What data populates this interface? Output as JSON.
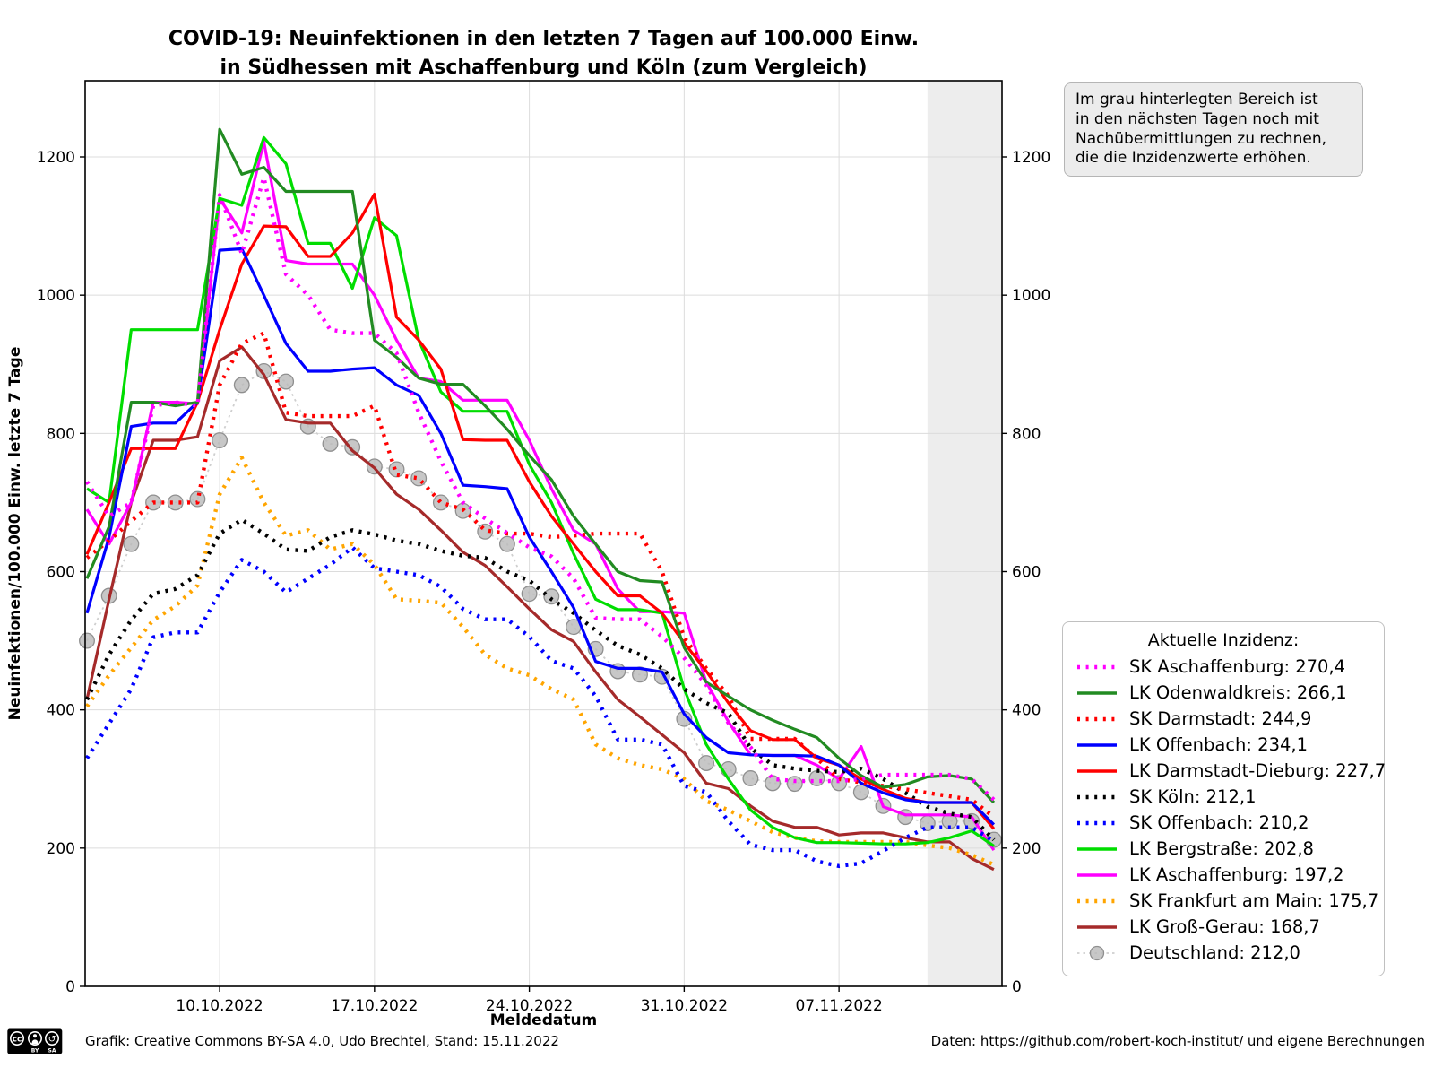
{
  "chart_data": {
    "type": "line",
    "title": "COVID-19: Neuinfektionen in den letzten 7 Tagen auf 100.000 Einw.\nin Südhessen mit Aschaffenburg und Köln (zum Vergleich)",
    "xlabel": "Meldedatum",
    "ylabel": "Neuinfektionen/100.000 Einw. letzte 7 Tage",
    "ylim": [
      0,
      1310
    ],
    "yticks": [
      0,
      200,
      400,
      600,
      800,
      1000,
      1200
    ],
    "grid": true,
    "n_days": 42,
    "x_start_date": "04.10.2022",
    "x_end_date": "14.11.2022",
    "x_tick_labels": [
      "10.10.2022",
      "17.10.2022",
      "24.10.2022",
      "31.10.2022",
      "07.11.2022"
    ],
    "x_tick_indices": [
      6,
      13,
      20,
      27,
      34
    ],
    "shaded_region": {
      "start_index": 38,
      "end_index": 41,
      "color": "#ededed"
    },
    "legend_title": "Aktuelle Inzidenz:",
    "legend_position": "lower right, outside plot",
    "series": [
      {
        "name": "SK Aschaffenburg",
        "value_label": "270,4",
        "color": "#ff00ff",
        "style": "dotted",
        "values": [
          730,
          680,
          700,
          840,
          845,
          840,
          1145,
          1060,
          1170,
          1030,
          1000,
          950,
          945,
          945,
          916,
          830,
          760,
          700,
          677,
          656,
          635,
          622,
          590,
          533,
          531,
          531,
          506,
          475,
          436,
          381,
          346,
          300,
          297,
          297,
          297,
          300,
          306,
          306,
          306,
          306,
          300,
          270
        ]
      },
      {
        "name": "LK Odenwaldkreis",
        "value_label": "266,1",
        "color": "#228b22",
        "style": "solid",
        "values": [
          590,
          665,
          845,
          845,
          840,
          845,
          1240,
          1175,
          1185,
          1150,
          1150,
          1150,
          1150,
          935,
          910,
          880,
          871,
          871,
          840,
          806,
          768,
          733,
          680,
          640,
          600,
          587,
          585,
          490,
          440,
          420,
          400,
          385,
          372,
          360,
          330,
          305,
          288,
          292,
          303,
          305,
          300,
          266
        ]
      },
      {
        "name": "SK Darmstadt",
        "value_label": "244,9",
        "color": "#ff0000",
        "style": "dotted",
        "values": [
          620,
          645,
          673,
          700,
          700,
          700,
          870,
          930,
          945,
          830,
          825,
          825,
          825,
          840,
          740,
          735,
          700,
          690,
          660,
          655,
          655,
          650,
          652,
          655,
          655,
          655,
          600,
          505,
          460,
          420,
          358,
          358,
          358,
          330,
          300,
          295,
          290,
          285,
          280,
          275,
          270,
          245
        ]
      },
      {
        "name": "LK Offenbach",
        "value_label": "234,1",
        "color": "#0000ff",
        "style": "solid",
        "values": [
          540,
          650,
          810,
          815,
          815,
          845,
          1065,
          1067,
          1000,
          930,
          890,
          890,
          893,
          895,
          870,
          855,
          800,
          725,
          723,
          720,
          650,
          600,
          548,
          470,
          460,
          460,
          455,
          394,
          360,
          338,
          335,
          334,
          334,
          333,
          320,
          294,
          280,
          270,
          266,
          266,
          266,
          234
        ]
      },
      {
        "name": "LK Darmstadt-Dieburg",
        "value_label": "227,7",
        "color": "#ff0000",
        "style": "solid",
        "values": [
          625,
          700,
          778,
          778,
          778,
          845,
          950,
          1045,
          1100,
          1099,
          1056,
          1056,
          1090,
          1146,
          968,
          935,
          893,
          791,
          790,
          790,
          730,
          680,
          640,
          600,
          565,
          565,
          540,
          497,
          456,
          410,
          370,
          357,
          357,
          330,
          320,
          300,
          285,
          272,
          266,
          266,
          266,
          228
        ]
      },
      {
        "name": "SK Köln",
        "value_label": "212,1",
        "color": "#000000",
        "style": "dotted",
        "values": [
          415,
          480,
          530,
          568,
          575,
          595,
          655,
          675,
          655,
          632,
          630,
          650,
          660,
          654,
          645,
          640,
          630,
          623,
          620,
          600,
          587,
          560,
          540,
          515,
          493,
          480,
          460,
          430,
          410,
          395,
          345,
          320,
          315,
          312,
          310,
          315,
          300,
          280,
          260,
          250,
          245,
          212
        ]
      },
      {
        "name": "SK Offenbach",
        "value_label": "210,2",
        "color": "#0000ff",
        "style": "dotted",
        "values": [
          330,
          380,
          430,
          505,
          512,
          512,
          570,
          617,
          600,
          570,
          590,
          610,
          635,
          605,
          600,
          595,
          578,
          546,
          531,
          531,
          506,
          471,
          460,
          420,
          357,
          357,
          350,
          290,
          281,
          239,
          205,
          197,
          197,
          181,
          174,
          178,
          196,
          215,
          230,
          230,
          230,
          210
        ]
      },
      {
        "name": "LK Bergstraße",
        "value_label": "202,8",
        "color": "#00dd00",
        "style": "solid",
        "values": [
          720,
          700,
          950,
          950,
          950,
          950,
          1140,
          1130,
          1228,
          1190,
          1075,
          1075,
          1010,
          1112,
          1086,
          935,
          860,
          832,
          832,
          832,
          755,
          700,
          626,
          560,
          545,
          545,
          540,
          430,
          350,
          300,
          255,
          230,
          215,
          208,
          208,
          207,
          206,
          206,
          208,
          215,
          225,
          203
        ]
      },
      {
        "name": "LK Aschaffenburg",
        "value_label": "197,2",
        "color": "#ff00ff",
        "style": "solid",
        "values": [
          690,
          640,
          700,
          845,
          845,
          843,
          1140,
          1090,
          1222,
          1050,
          1045,
          1045,
          1045,
          1000,
          935,
          880,
          875,
          848,
          848,
          848,
          790,
          720,
          660,
          640,
          575,
          542,
          542,
          540,
          440,
          383,
          335,
          334,
          334,
          320,
          300,
          347,
          260,
          248,
          248,
          248,
          245,
          197
        ]
      },
      {
        "name": "SK Frankfurt am Main",
        "value_label": "175,7",
        "color": "#ffa500",
        "style": "dotted",
        "values": [
          405,
          450,
          490,
          530,
          550,
          580,
          712,
          765,
          700,
          652,
          660,
          632,
          640,
          610,
          560,
          558,
          555,
          520,
          480,
          460,
          450,
          430,
          415,
          350,
          330,
          320,
          314,
          300,
          268,
          255,
          239,
          223,
          215,
          210,
          209,
          209,
          209,
          209,
          204,
          200,
          190,
          176
        ]
      },
      {
        "name": "LK Groß-Gerau",
        "value_label": "168,7",
        "color": "#a52a2a",
        "style": "solid",
        "values": [
          415,
          560,
          700,
          790,
          790,
          795,
          905,
          925,
          885,
          820,
          815,
          815,
          775,
          750,
          712,
          690,
          660,
          628,
          609,
          578,
          546,
          516,
          499,
          455,
          415,
          390,
          364,
          338,
          294,
          286,
          261,
          239,
          230,
          230,
          219,
          222,
          222,
          215,
          209,
          209,
          185,
          169
        ]
      },
      {
        "name": "Deutschland",
        "value_label": "212,0",
        "color": "#b0b0b0",
        "style": "dotted-marker",
        "values": [
          500,
          565,
          640,
          700,
          700,
          705,
          790,
          870,
          890,
          875,
          810,
          785,
          780,
          752,
          748,
          735,
          700,
          688,
          658,
          640,
          568,
          564,
          520,
          488,
          456,
          451,
          448,
          387,
          323,
          314,
          301,
          294,
          293,
          301,
          294,
          281,
          261,
          245,
          236,
          239,
          239,
          212
        ]
      }
    ]
  },
  "annotation": {
    "text": "Im grau hinterlegten Bereich ist\nin den nächsten Tagen noch mit\nNachübermittlungen zu rechnen,\ndie die Inzidenzwerte erhöhen."
  },
  "footer": {
    "left": "Grafik: Creative Commons BY-SA 4.0, Udo Brechtel, Stand: 15.11.2022",
    "right": "Daten: https://github.com/robert-koch-institut/ und eigene Berechnungen",
    "license_icon": "cc-by-sa-badge",
    "license_icon_labels": {
      "cc": "cc",
      "by": "BY",
      "sa": "SA"
    }
  }
}
